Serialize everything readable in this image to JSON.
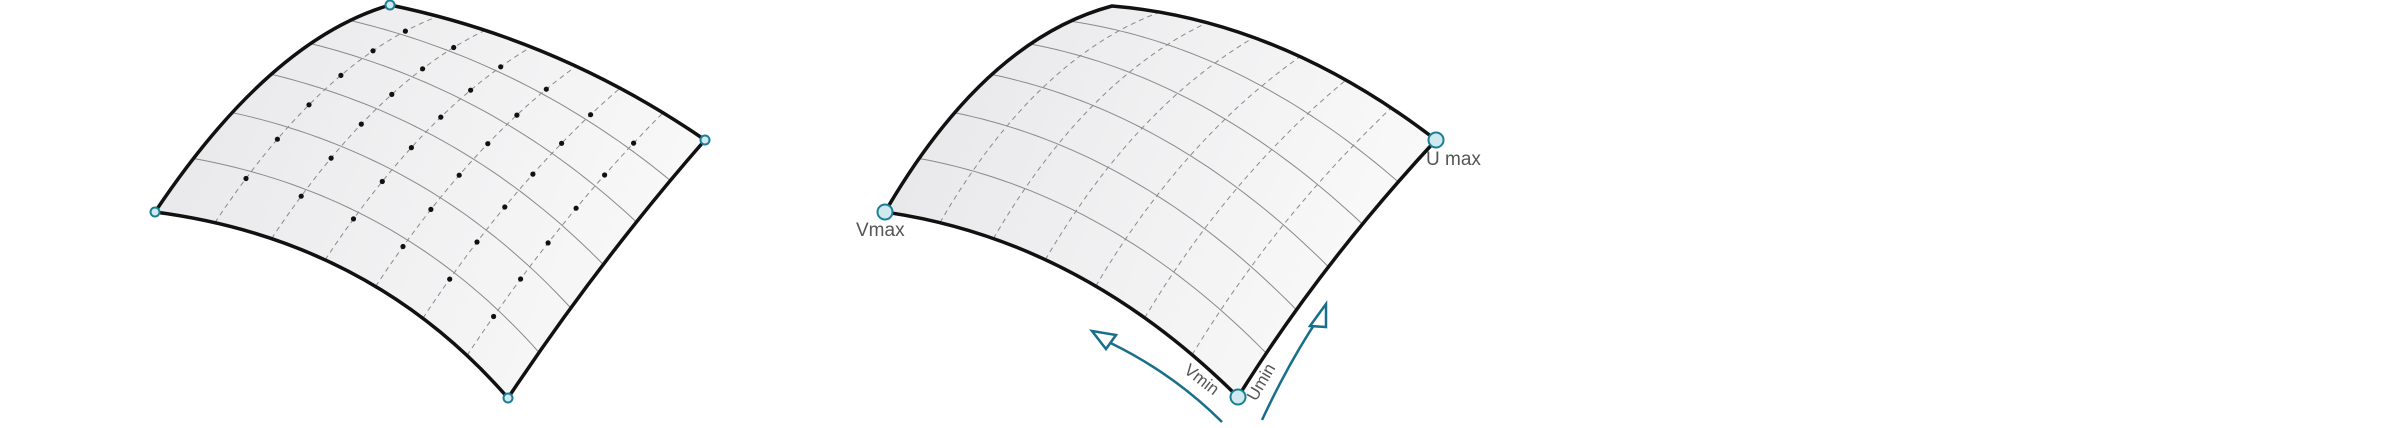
{
  "figure": {
    "left_panel": {
      "description_shown": false
    },
    "right_panel": {
      "labels": {
        "vmax": "Vmax",
        "umax": "U max",
        "vmin": "Vmin",
        "umin": "Umin"
      }
    }
  },
  "colors": {
    "surface_fill_light": "#f7f7f7",
    "surface_fill_dark": "#e8e8ea",
    "edge": "#111111",
    "grid": "#8a8a8a",
    "control_point": "#111111",
    "corner_handle_stroke": "#1a7f96",
    "corner_handle_fill": "#cfe9ef",
    "arrow": "#176f8a",
    "label": "#555555"
  }
}
